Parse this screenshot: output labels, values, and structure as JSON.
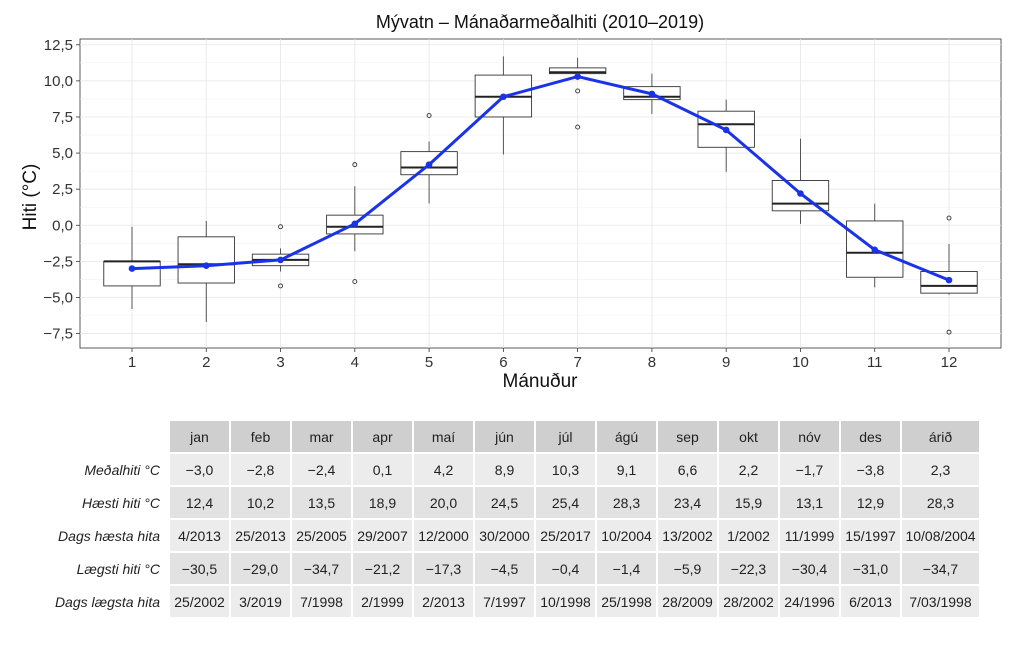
{
  "chart_data": {
    "type": "box",
    "title": "Mývatn – Mánaðarmeðalhiti (2010–2019)",
    "xlabel": "Mánuður",
    "ylabel": "Hiti (°C)",
    "categories": [
      "1",
      "2",
      "3",
      "4",
      "5",
      "6",
      "7",
      "8",
      "9",
      "10",
      "11",
      "12"
    ],
    "ylim": [
      -8.5,
      12.9
    ],
    "yticks": [
      -7.5,
      -5.0,
      -2.5,
      0.0,
      2.5,
      5.0,
      7.5,
      10.0,
      12.5
    ],
    "ytick_labels": [
      "−7,5",
      "−5,0",
      "−2,5",
      "0,0",
      "2,5",
      "5,0",
      "7,5",
      "10,0",
      "12,5"
    ],
    "grid": true,
    "boxes": [
      {
        "month": 1,
        "whislo": -5.8,
        "q1": -4.2,
        "med": -2.5,
        "q3": -2.5,
        "whishi": -0.1,
        "fliers": []
      },
      {
        "month": 2,
        "whislo": -6.7,
        "q1": -4.0,
        "med": -2.7,
        "q3": -0.8,
        "whishi": 0.3,
        "fliers": []
      },
      {
        "month": 3,
        "whislo": -3.2,
        "q1": -2.8,
        "med": -2.4,
        "q3": -2.0,
        "whishi": -1.6,
        "fliers": [
          -0.1,
          -4.2
        ]
      },
      {
        "month": 4,
        "whislo": -1.8,
        "q1": -0.6,
        "med": -0.1,
        "q3": 0.7,
        "whishi": 2.7,
        "fliers": [
          4.2,
          -3.9
        ]
      },
      {
        "month": 5,
        "whislo": 1.5,
        "q1": 3.5,
        "med": 4.0,
        "q3": 5.1,
        "whishi": 5.8,
        "fliers": [
          7.6
        ]
      },
      {
        "month": 6,
        "whislo": 4.9,
        "q1": 7.5,
        "med": 8.9,
        "q3": 10.4,
        "whishi": 11.7,
        "fliers": []
      },
      {
        "month": 7,
        "whislo": 10.4,
        "q1": 10.5,
        "med": 10.6,
        "q3": 10.9,
        "whishi": 11.6,
        "fliers": [
          9.3,
          6.8
        ]
      },
      {
        "month": 8,
        "whislo": 7.7,
        "q1": 8.7,
        "med": 8.9,
        "q3": 9.6,
        "whishi": 10.5,
        "fliers": []
      },
      {
        "month": 9,
        "whislo": 3.7,
        "q1": 5.4,
        "med": 7.0,
        "q3": 7.9,
        "whishi": 8.7,
        "fliers": []
      },
      {
        "month": 10,
        "whislo": 0.1,
        "q1": 1.0,
        "med": 1.5,
        "q3": 3.1,
        "whishi": 6.0,
        "fliers": []
      },
      {
        "month": 11,
        "whislo": -4.3,
        "q1": -3.6,
        "med": -1.9,
        "q3": 0.3,
        "whishi": 1.5,
        "fliers": []
      },
      {
        "month": 12,
        "whislo": -4.8,
        "q1": -4.7,
        "med": -4.2,
        "q3": -3.2,
        "whishi": -1.3,
        "fliers": [
          0.5,
          -7.4
        ]
      }
    ],
    "mean_line": {
      "color": "#1a33e6",
      "values": [
        -3.0,
        -2.8,
        -2.4,
        0.1,
        4.2,
        8.9,
        10.3,
        9.1,
        6.6,
        2.2,
        -1.7,
        -3.8
      ]
    }
  },
  "table": {
    "headers": [
      "jan",
      "feb",
      "mar",
      "apr",
      "maí",
      "jún",
      "júl",
      "ágú",
      "sep",
      "okt",
      "nóv",
      "des",
      "árið"
    ],
    "rows": [
      {
        "label": "Meðalhiti °C",
        "values": [
          "−3,0",
          "−2,8",
          "−2,4",
          "0,1",
          "4,2",
          "8,9",
          "10,3",
          "9,1",
          "6,6",
          "2,2",
          "−1,7",
          "−3,8",
          "2,3"
        ]
      },
      {
        "label": "Hæsti hiti °C",
        "values": [
          "12,4",
          "10,2",
          "13,5",
          "18,9",
          "20,0",
          "24,5",
          "25,4",
          "28,3",
          "23,4",
          "15,9",
          "13,1",
          "12,9",
          "28,3"
        ]
      },
      {
        "label": "Dags hæsta hita",
        "values": [
          "4/2013",
          "25/2013",
          "25/2005",
          "29/2007",
          "12/2000",
          "30/2000",
          "25/2017",
          "10/2004",
          "13/2002",
          "1/2002",
          "11/1999",
          "15/1997",
          "10/08/2004"
        ]
      },
      {
        "label": "Lægsti hiti °C",
        "values": [
          "−30,5",
          "−29,0",
          "−34,7",
          "−21,2",
          "−17,3",
          "−4,5",
          "−0,4",
          "−1,4",
          "−5,9",
          "−22,3",
          "−30,4",
          "−31,0",
          "−34,7"
        ]
      },
      {
        "label": "Dags lægsta hita",
        "values": [
          "25/2002",
          "3/2019",
          "7/1998",
          "2/1999",
          "2/2013",
          "7/1997",
          "10/1998",
          "25/1998",
          "28/2009",
          "28/2002",
          "24/1996",
          "6/2013",
          "7/03/1998"
        ]
      }
    ]
  }
}
